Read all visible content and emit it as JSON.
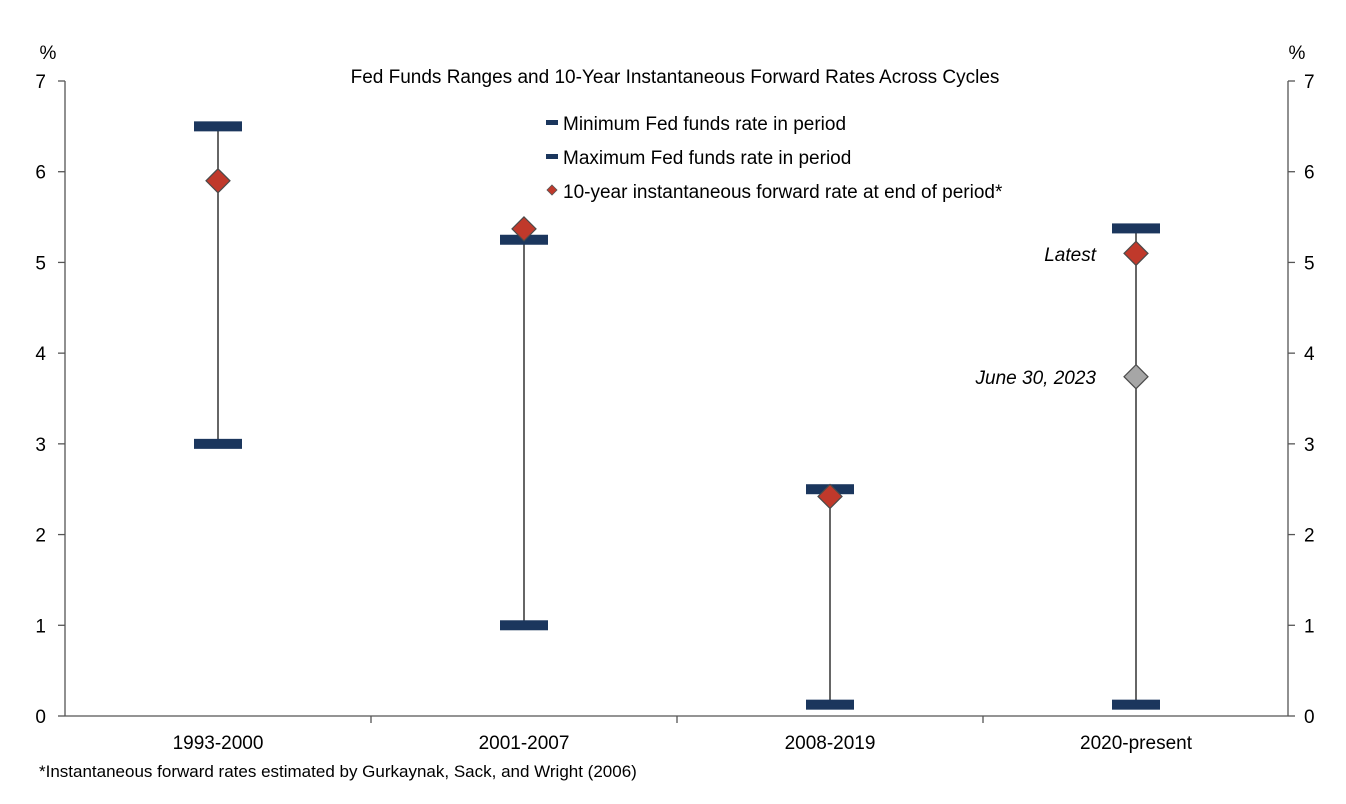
{
  "chart_data": {
    "type": "scatter",
    "title": "Fed Funds Ranges and 10-Year Instantaneous Forward Rates Across Cycles",
    "y_unit_left": "%",
    "y_unit_right": "%",
    "ylim": [
      0,
      7
    ],
    "y_ticks": [
      "0",
      "1",
      "2",
      "3",
      "4",
      "5",
      "6",
      "7"
    ],
    "categories": [
      "1993-2000",
      "2001-2007",
      "2008-2019",
      "2020-present"
    ],
    "series": [
      {
        "name": "Minimum Fed funds rate in period",
        "values": [
          3.0,
          1.0,
          0.125,
          0.125
        ],
        "color": "#1b365d"
      },
      {
        "name": "Maximum Fed funds rate in period",
        "values": [
          6.5,
          5.25,
          2.5,
          5.375
        ],
        "color": "#1b365d"
      },
      {
        "name": "10-year instantaneous forward rate at end of period*",
        "values": [
          5.9,
          5.37,
          2.42,
          5.1
        ],
        "color": "#c0392b"
      }
    ],
    "annotations": [
      {
        "category": "2020-present",
        "text": "Latest",
        "value": 5.1,
        "color": "#c0392b"
      },
      {
        "category": "2020-present",
        "text": "June 30, 2023",
        "value": 3.74,
        "color": "#a6a6a6"
      }
    ],
    "grid": false,
    "legend_position": "top-center",
    "footnote": "*Instantaneous forward rates estimated by Gurkaynak, Sack, and Wright (2006)"
  }
}
